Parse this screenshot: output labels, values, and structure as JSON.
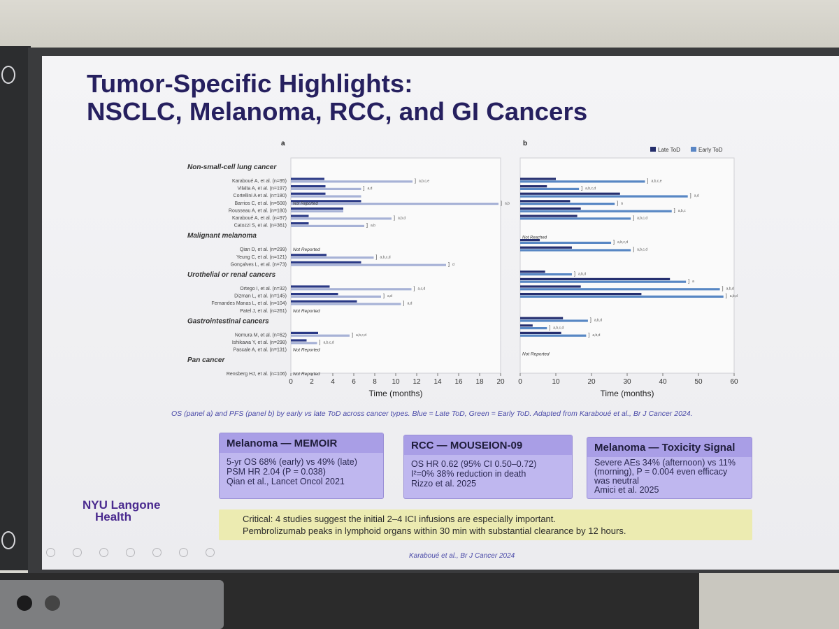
{
  "slide": {
    "title_line1": "Tumor-Specific Highlights:",
    "title_line2": "NSCLC, Melanoma, RCC, and GI Cancers",
    "caption": "OS (panel a) and PFS (panel b) by early vs late ToD across cancer types. Blue = Late ToD, Green = Early ToD. Adapted from Karaboué et al., Br J Cancer 2024.",
    "footer_cite": "Karaboué et al., Br J Cancer 2024",
    "logo_line1": "NYU Langone",
    "logo_line2": "Health"
  },
  "cards": [
    {
      "title": "Melanoma — MEMOIR",
      "lines": [
        "5-yr OS 68% (early) vs 49% (late)",
        "PSM HR 2.04 (P = 0.038)",
        "Qian et al., Lancet Oncol 2021"
      ]
    },
    {
      "title": "RCC — MOUSEION-09",
      "lines": [
        "OS HR 0.62 (95% CI 0.50–0.72)",
        "I²=0% 38% reduction in death",
        "Rizzo et al. 2025"
      ]
    },
    {
      "title": "Melanoma — Toxicity Signal",
      "lines": [
        "Severe AEs 34% (afternoon) vs 11%",
        "(morning), P = 0.004  even efficacy",
        "was neutral",
        "Amici et al. 2025"
      ]
    }
  ],
  "note": {
    "line1": "Critical: 4 studies suggest the initial 2–4 ICI infusions are especially important.",
    "line2": "Pembrolizumab peaks in lymphoid organs within 30 min with substantial clearance by 12 hours."
  },
  "chart_data": [
    {
      "type": "bar",
      "panel_label": "a",
      "xlabel": "Time (months)",
      "xlim": [
        0,
        20
      ],
      "ticks": [
        0,
        2,
        4,
        6,
        8,
        10,
        12,
        14,
        16,
        18,
        20
      ],
      "not_reported_label": "Not Reported",
      "groups": [
        {
          "name": "Non-small-cell lung cancer",
          "rows": [
            {
              "label": "Karaboué A, et al. (n=95)",
              "late": 3.2,
              "early": 11.6,
              "flag": "a,b,c,e"
            },
            {
              "label": "Vilalta A, et al. (n=197)",
              "late": 3.3,
              "early": 6.7,
              "flag": "a,d"
            },
            {
              "label": "Cortellini A et al. (n=180)",
              "late": 3.3,
              "early": 6.7,
              "flag": ""
            },
            {
              "label": "Barrios C, et al. (n=508)",
              "late": 6.7,
              "early": 19.8,
              "flag": "a,b",
              "late_nr": true
            },
            {
              "label": "Rousseau A, et al. (n=180)",
              "late": 5.0,
              "early": 5.0,
              "flag": ""
            },
            {
              "label": "Karaboué A, et al. (n=97)",
              "late": 1.7,
              "early": 9.6,
              "flag": "a,b,d"
            },
            {
              "label": "Catozzi S, et al. (n=361)",
              "late": 1.7,
              "early": 7.0,
              "flag": "a,b"
            }
          ]
        },
        {
          "name": "Malignant melanoma",
          "rows": [
            {
              "label": "Qian D, et al. (n=299)",
              "nr": true
            },
            {
              "label": "Yeung C, et al. (n=121)",
              "late": 3.4,
              "early": 7.9,
              "flag": "a,b,c,d"
            },
            {
              "label": "Gonçalves L, et al. (n=73)",
              "late": 6.7,
              "early": 14.8,
              "flag": "d"
            }
          ]
        },
        {
          "name": "Urothelial or renal cancers",
          "rows": [
            {
              "label": "Ortego I, et al. (n=32)",
              "late": 3.7,
              "early": 11.5,
              "flag": "a,c,d"
            },
            {
              "label": "Dizman L, et al. (n=145)",
              "late": 4.5,
              "early": 8.6,
              "flag": "a,d"
            },
            {
              "label": "Fernandes Manas L, et al. (n=104)",
              "late": 6.3,
              "early": 10.5,
              "flag": "a,d"
            },
            {
              "label": "Patel J, et al. (n=261)",
              "nr": true
            }
          ]
        },
        {
          "name": "Gastrointestinal cancers",
          "rows": [
            {
              "label": "Nomura M, et al. (n=62)",
              "late": 2.6,
              "early": 5.6,
              "flag": "a,b,c,d"
            },
            {
              "label": "Ishikawa Y, et al. (n=298)",
              "late": 1.5,
              "early": 2.5,
              "flag": "a,b,c,d"
            },
            {
              "label": "Pascale A, et al. (n=131)",
              "nr": true
            }
          ]
        },
        {
          "name": "Pan cancer",
          "rows": [
            {
              "label": "Rensberg HJ, et al. (n=106)",
              "nr": true
            }
          ]
        }
      ]
    },
    {
      "type": "bar",
      "panel_label": "b",
      "xlabel": "Time (months)",
      "xlim": [
        0,
        60
      ],
      "ticks": [
        0,
        10,
        20,
        30,
        40,
        50,
        60
      ],
      "legend": [
        "Late ToD",
        "Early ToD"
      ],
      "legend_position": "top-right",
      "not_reached_label": "Not Reached",
      "not_reported_label": "Not Reported",
      "groups": [
        {
          "name": "Non-small-cell lung cancer",
          "rows": [
            {
              "late": 10,
              "early": 35,
              "flag": "a,b,c,e"
            },
            {
              "late": 7.5,
              "early": 16.5,
              "flag": "a,b,c,d"
            },
            {
              "late": 28,
              "early": 47,
              "flag": "a,d"
            },
            {
              "late": 14,
              "early": 26.5,
              "flag": "a"
            },
            {
              "late": 17,
              "early": 42.5,
              "flag": "a,b,c"
            },
            {
              "late": 16,
              "early": 31,
              "flag": "a,b,c,d"
            }
          ]
        },
        {
          "name": "Malignant melanoma",
          "rows": [
            {
              "late": 5.5,
              "early": 25.5,
              "flag": "a,b,c,d",
              "note": "Not Reached"
            },
            {
              "late": 14.5,
              "early": 31,
              "flag": "a,b,c,d"
            }
          ]
        },
        {
          "name": "Urothelial or renal cancers",
          "rows": [
            {
              "late": 7,
              "early": 14.5,
              "flag": "a,b,d"
            },
            {
              "late": 42,
              "early": 46.5,
              "flag": "a"
            },
            {
              "late": 17,
              "early": 56,
              "flag": "a,b,d"
            },
            {
              "late": 34,
              "early": 57,
              "flag": "a,b,d"
            }
          ]
        },
        {
          "name": "Gastrointestinal cancers",
          "rows": [
            {
              "late": 12,
              "early": 19,
              "flag": "a,b,d"
            },
            {
              "late": 3.5,
              "early": 7.5,
              "flag": "a,b,c,d"
            },
            {
              "late": 11.5,
              "early": 18.5,
              "flag": "a,b,d"
            }
          ]
        }
      ]
    }
  ]
}
